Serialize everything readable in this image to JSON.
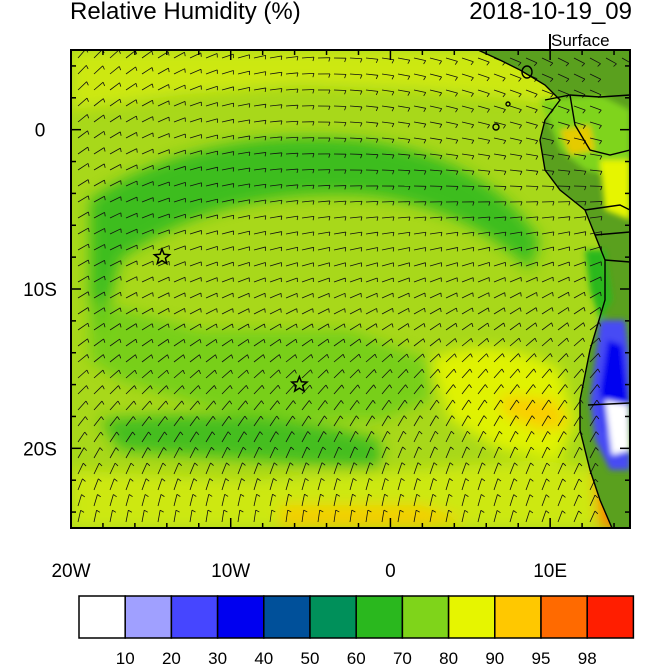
{
  "title": "Relative Humidity (%)",
  "datetime": "2018-10-19_09",
  "level": "Surface",
  "axes": {
    "x_ticks": [
      {
        "value": -20,
        "label": "20W"
      },
      {
        "value": -10,
        "label": "10W"
      },
      {
        "value": 0,
        "label": "0"
      },
      {
        "value": 10,
        "label": "10E"
      }
    ],
    "y_ticks": [
      {
        "value": 0,
        "label": "0"
      },
      {
        "value": -10,
        "label": "10S"
      },
      {
        "value": -20,
        "label": "20S"
      }
    ],
    "lon_range": [
      -20,
      15
    ],
    "lat_range": [
      -25,
      5
    ]
  },
  "markers": [
    {
      "name": "star-marker-1",
      "lon": -14.3,
      "lat": -8.0
    },
    {
      "name": "star-marker-2",
      "lon": -5.7,
      "lat": -16.0
    }
  ],
  "colorbar": {
    "labels": [
      "10",
      "20",
      "30",
      "40",
      "50",
      "60",
      "70",
      "80",
      "90",
      "95",
      "98"
    ],
    "colors": [
      "#ffffff",
      "#a0a0ff",
      "#4646ff",
      "#0000f0",
      "#00509a",
      "#00905a",
      "#2ab81e",
      "#7fd41a",
      "#e6f500",
      "#ffc800",
      "#ff6a00",
      "#ff1e00"
    ]
  }
}
